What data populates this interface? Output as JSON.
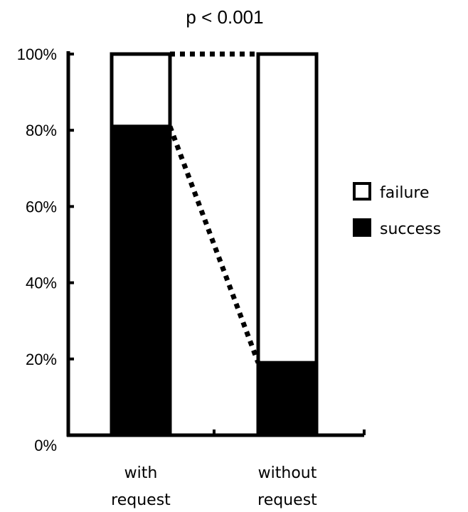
{
  "chart_data": {
    "type": "bar",
    "stacked": true,
    "title": "p < 0.001",
    "xlabel": "",
    "ylabel": "",
    "categories": [
      [
        "with",
        "request"
      ],
      [
        "without",
        "request"
      ]
    ],
    "series": [
      {
        "name": "success",
        "values": [
          81,
          19
        ],
        "color": "#000000"
      },
      {
        "name": "failure",
        "values": [
          19,
          81
        ],
        "color": "#ffffff"
      }
    ],
    "ylim": [
      0,
      100
    ],
    "yticks": [
      "0%",
      "20%",
      "40%",
      "60%",
      "80%",
      "100%"
    ],
    "ytick_values": [
      0,
      20,
      40,
      60,
      80,
      100
    ],
    "legend": {
      "position": "right",
      "entries": [
        {
          "label": "failure",
          "color": "#ffffff"
        },
        {
          "label": "success",
          "color": "#000000"
        }
      ]
    },
    "connectors": "dotted",
    "grid": false
  }
}
